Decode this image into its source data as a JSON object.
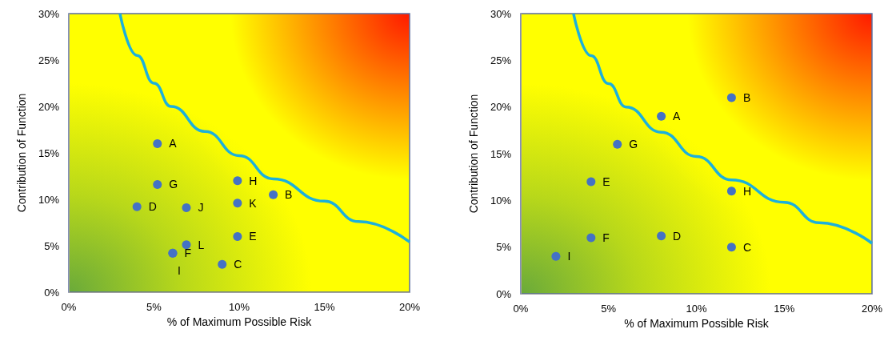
{
  "chart_data": [
    {
      "type": "scatter",
      "xlabel": "% of Maximum Possible Risk",
      "ylabel": "Contribution of Function",
      "xlim": [
        0,
        20
      ],
      "ylim": [
        0,
        30
      ],
      "xticks": [
        {
          "value": 0,
          "label": "0%"
        },
        {
          "value": 5,
          "label": "5%"
        },
        {
          "value": 10,
          "label": "10%"
        },
        {
          "value": 15,
          "label": "15%"
        },
        {
          "value": 20,
          "label": "20%"
        }
      ],
      "yticks": [
        {
          "value": 0,
          "label": "0%"
        },
        {
          "value": 5,
          "label": "5%"
        },
        {
          "value": 10,
          "label": "10%"
        },
        {
          "value": 15,
          "label": "15%"
        },
        {
          "value": 20,
          "label": "20%"
        },
        {
          "value": 25,
          "label": "25%"
        },
        {
          "value": 30,
          "label": "30%"
        }
      ],
      "grid": false,
      "marker": "circle",
      "series": [
        {
          "color": "#4472c4",
          "x": [
            5.2,
            5.2,
            4.0,
            6.9,
            9.9,
            9.9,
            12.0,
            9.9,
            6.9,
            6.1,
            9.0,
            6.1
          ],
          "values": [
            16.0,
            11.6,
            9.2,
            9.1,
            12.0,
            9.6,
            10.5,
            6.0,
            5.1,
            4.2,
            3.0,
            4.2
          ],
          "value_labels": [
            "A",
            "G",
            "D",
            "J",
            "H",
            "K",
            "B",
            "E",
            "L",
            "F",
            "C",
            "I"
          ]
        },
        {
          "type": "line",
          "color": "#1cb0dc",
          "marker": "none",
          "x": [
            3,
            4,
            5,
            6,
            8,
            10,
            12,
            15,
            17,
            20
          ],
          "values": [
            30,
            25.5,
            22.5,
            20,
            17.3,
            14.7,
            12.2,
            9.8,
            7.6,
            5.4
          ]
        }
      ]
    },
    {
      "type": "scatter",
      "xlabel": "% of Maximum Possible Risk",
      "ylabel": "Contribution of Function",
      "xlim": [
        0,
        20
      ],
      "ylim": [
        0,
        30
      ],
      "xticks": [
        {
          "value": 0,
          "label": "0%"
        },
        {
          "value": 5,
          "label": "5%"
        },
        {
          "value": 10,
          "label": "10%"
        },
        {
          "value": 15,
          "label": "15%"
        },
        {
          "value": 20,
          "label": "20%"
        }
      ],
      "yticks": [
        {
          "value": 0,
          "label": "0%"
        },
        {
          "value": 5,
          "label": "5%"
        },
        {
          "value": 10,
          "label": "10%"
        },
        {
          "value": 15,
          "label": "15%"
        },
        {
          "value": 20,
          "label": "20%"
        },
        {
          "value": 25,
          "label": "25%"
        },
        {
          "value": 30,
          "label": "30%"
        }
      ],
      "grid": false,
      "marker": "circle",
      "series": [
        {
          "color": "#4472c4",
          "x": [
            8,
            12,
            12,
            8,
            4,
            4,
            5.5,
            12,
            2
          ],
          "values": [
            19,
            21,
            5,
            6.2,
            12,
            6,
            16,
            11,
            4
          ],
          "value_labels": [
            "A",
            "B",
            "C",
            "D",
            "E",
            "F",
            "G",
            "H",
            "I"
          ]
        },
        {
          "type": "line",
          "color": "#1cb0dc",
          "marker": "none",
          "x": [
            3,
            4,
            5,
            6,
            8,
            10,
            12,
            15,
            17,
            20
          ],
          "values": [
            30,
            25.5,
            22.5,
            20,
            17.3,
            14.7,
            12.2,
            9.8,
            7.6,
            5.4
          ]
        }
      ]
    }
  ]
}
